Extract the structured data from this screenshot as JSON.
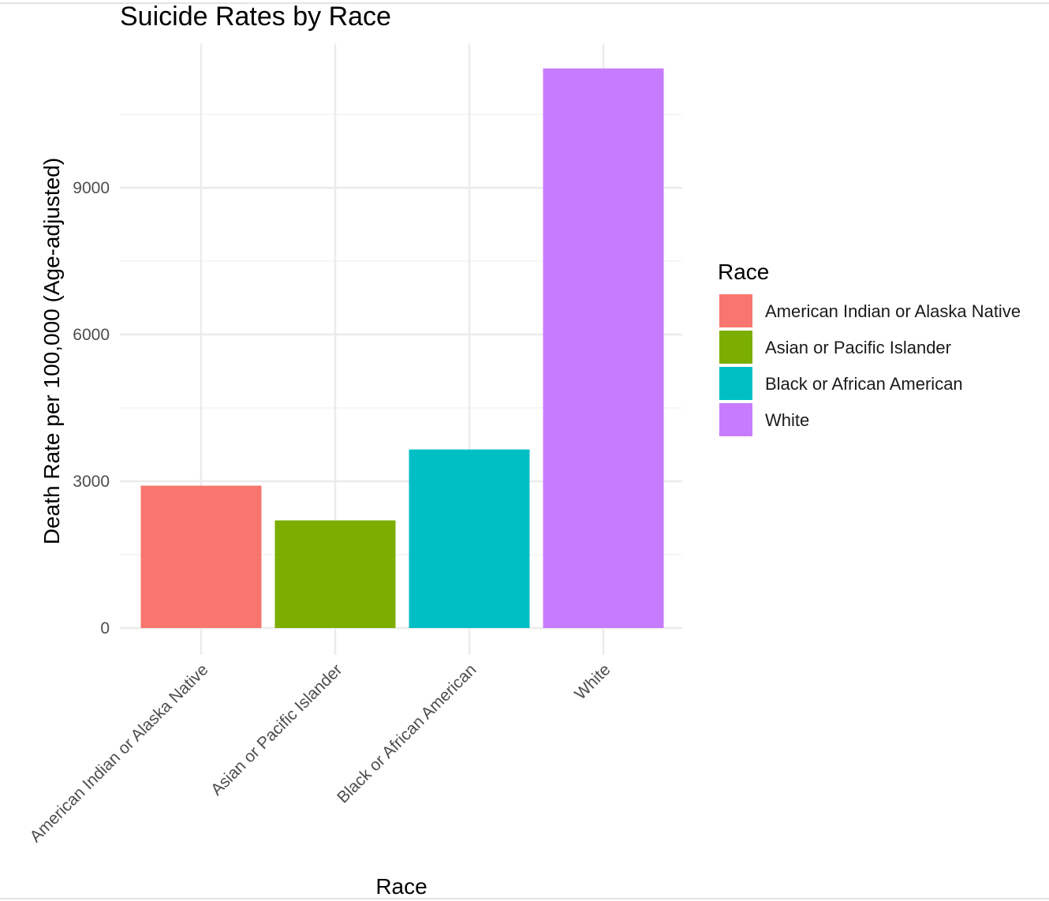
{
  "chart_data": {
    "type": "bar",
    "title": "Suicide Rates by Race",
    "xlabel": "Race",
    "ylabel": "Death Rate per 100,000 (Age-adjusted)",
    "categories": [
      "American Indian or Alaska Native",
      "Asian or Pacific Islander",
      "Black or African American",
      "White"
    ],
    "values": [
      2910,
      2200,
      3650,
      11440
    ],
    "colors": [
      "#F8766D",
      "#7CAE00",
      "#00BFC4",
      "#C77CFF"
    ],
    "ylim": [
      0,
      11500
    ],
    "yticks": [
      0,
      3000,
      6000,
      9000
    ],
    "grid": true,
    "legend": {
      "title": "Race",
      "placement": "right",
      "entries": [
        "American Indian or Alaska Native",
        "Asian or Pacific Islander",
        "Black or African American",
        "White"
      ]
    }
  }
}
